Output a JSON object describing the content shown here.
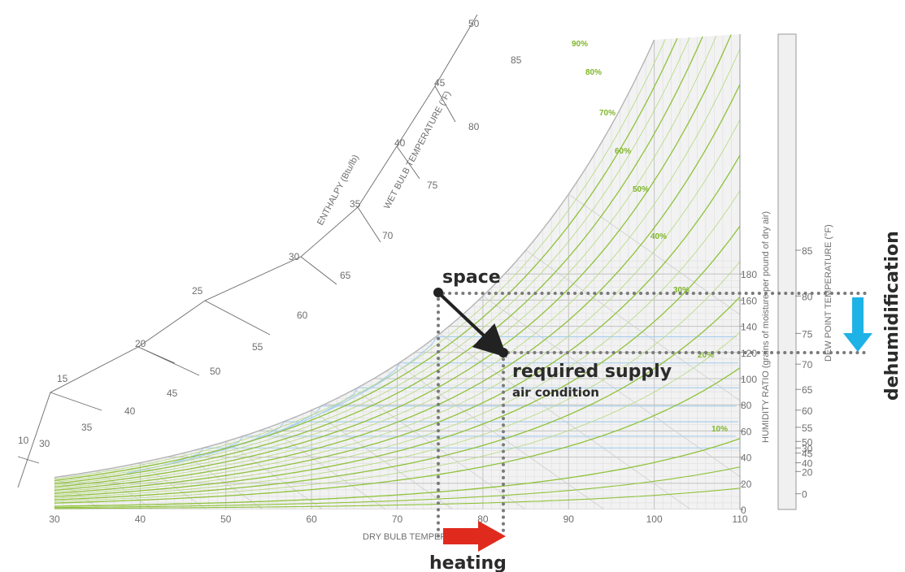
{
  "chart_data": {
    "type": "psychrometric",
    "x_axis": {
      "label": "DRY BULB TEMPERATURE (°F)",
      "range": [
        30,
        110
      ],
      "ticks": [
        "30",
        "40",
        "50",
        "60",
        "70",
        "80",
        "90",
        "100",
        "110"
      ]
    },
    "humidity_axis": {
      "label": "HUMIDITY RATIO (grains of moisture per pound of dry air)",
      "range": [
        0,
        200
      ],
      "ticks": [
        "0",
        "20",
        "40",
        "60",
        "80",
        "100",
        "120",
        "140",
        "160",
        "180"
      ]
    },
    "dew_point_axis": {
      "label": "DEW POINT TEMPERATURE (°F)",
      "ticks": [
        "0",
        "20",
        "30",
        "40",
        "45",
        "50",
        "55",
        "60",
        "65",
        "70",
        "75",
        "80",
        "85"
      ]
    },
    "wet_bulb_axis": {
      "label": "WET BULB TEMPERATURE (°F)",
      "ticks": [
        "30",
        "35",
        "40",
        "45",
        "50",
        "55",
        "60",
        "65",
        "70",
        "75",
        "80",
        "85"
      ]
    },
    "enthalpy_axis": {
      "label": "ENTHALPY (Btu/lb)",
      "ticks": [
        "10",
        "15",
        "20",
        "25",
        "30",
        "35",
        "40",
        "45",
        "50"
      ]
    },
    "rh_labels": [
      "90%",
      "80%",
      "70%",
      "60%",
      "50%",
      "40%",
      "30%",
      "20%",
      "10%"
    ],
    "points": [
      {
        "label": "space",
        "dry_bulb": 75,
        "humidity_ratio": 93
      },
      {
        "label": "required supply",
        "sublabel": "air condition",
        "dry_bulb": 82,
        "humidity_ratio": 66
      }
    ],
    "process_labels": {
      "heating": "heating",
      "dehumidification": "dehumidification"
    },
    "colors": {
      "rh_curves": "#8fc23a",
      "saturation_curve": "#b8b8b8",
      "wet_bulb_blue": "#a9cfee",
      "grid": "#d4d4d4",
      "heating_arrow": "#e02a1e",
      "dehumidification_arrow": "#1eb2e6",
      "process_arrow": "#222222",
      "guide_dots": "#7a7a7a"
    }
  }
}
